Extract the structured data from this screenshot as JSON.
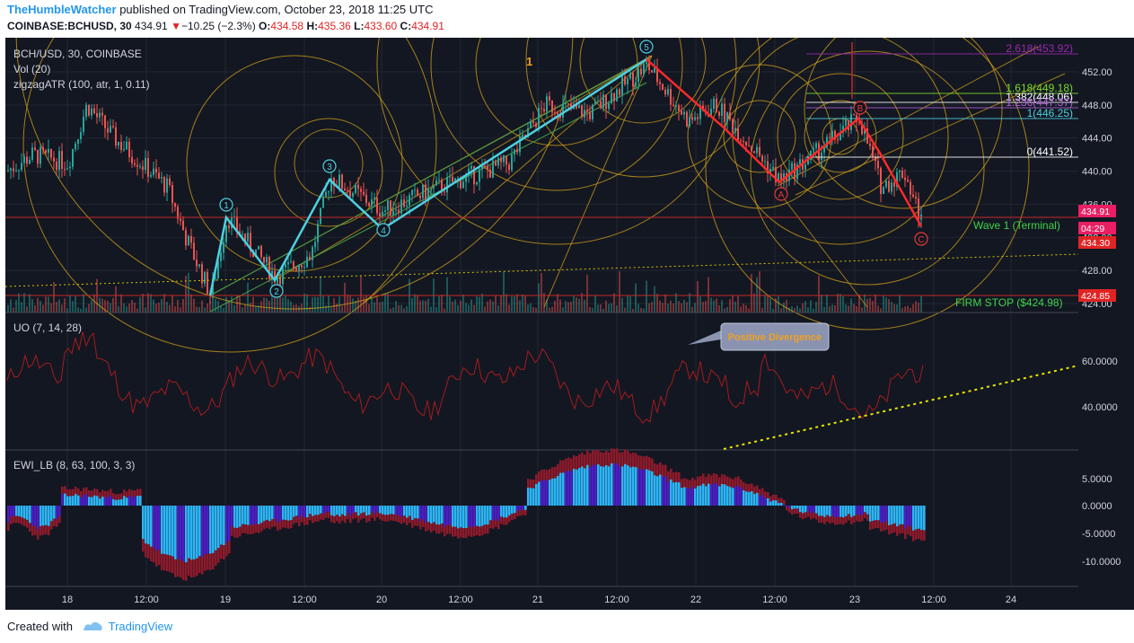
{
  "header": {
    "author": "TheHumbleWatcher",
    "published": " published on TradingView.com, October 23, 2018 11:25 UTC"
  },
  "ticker": {
    "symbol": "COINBASE:BCHUSD, 30",
    "price": "434.91",
    "change": "−10.25 (−2.3%)",
    "o_label": "O:",
    "o_value": "434.58",
    "h_label": "H:",
    "h_value": "435.36",
    "l_label": "L:",
    "l_value": "433.60",
    "c_label": "C:",
    "c_value": "434.91"
  },
  "colors": {
    "background": "#131722",
    "up_candle": "#26a69a",
    "down_candle": "#ef5350",
    "wave_line": "#4dd0e1",
    "correction_line": "#ff2a2a",
    "fib_circle": "#d6a418",
    "ewi_pos": "#29b6f6",
    "ewi_neg": "#4a1ec7",
    "ewi_outline": "#8b1a2b"
  },
  "main_pane": {
    "legend": [
      "BCH/USD, 30, COINBASE",
      "Vol (20)",
      "zigzagATR (100, atr, 1, 0.11)"
    ],
    "price_labels": [
      "452.00",
      "448.00",
      "444.00",
      "440.00",
      "436.00",
      "432.00",
      "428.00",
      "424.00"
    ],
    "fib_levels": [
      {
        "label": "2.618(453.92)",
        "color": "#9c27b0",
        "price": 453.92
      },
      {
        "label": "1.618(449.18)",
        "color": "#7cdc2a",
        "price": 449.18
      },
      {
        "label": "1.382(448.06)",
        "color": "#ffffff",
        "price": 448.06
      },
      {
        "label": "1.236(447.37)",
        "color": "#b060d8",
        "price": 447.37
      },
      {
        "label": "1(446.25)",
        "color": "#4dd0e1",
        "price": 446.25
      },
      {
        "label": "0(441.52)",
        "color": "#ffffff",
        "price": 441.52
      }
    ],
    "price_tags": [
      {
        "label": "434.91",
        "bg": "#e91e63"
      },
      {
        "label": "04:29",
        "bg": "#e91e63"
      },
      {
        "label": "434.30",
        "bg": "#e02424"
      },
      {
        "label": "424.85",
        "bg": "#e02424"
      }
    ],
    "wave_labels": [
      "1",
      "2",
      "3",
      "4",
      "5"
    ],
    "correction_labels": [
      "A",
      "B",
      "C"
    ],
    "orange_label": "1",
    "annotations": {
      "wave_terminal": "Wave 1 (Terminal)",
      "firm_stop": "FIRM STOP ($424.98)"
    }
  },
  "uo_pane": {
    "legend": "UO (7, 14, 28)",
    "axis_labels": [
      "60.0000",
      "40.0000"
    ],
    "callout": "Positive Divergence"
  },
  "ewi_pane": {
    "legend": "EWI_LB (8, 63, 100, 3, 3)",
    "axis_labels": [
      "5.0000",
      "0.0000",
      "-5.0000",
      "-10.0000"
    ]
  },
  "time_axis": [
    "18",
    "12:00",
    "19",
    "12:00",
    "20",
    "12:00",
    "21",
    "12:00",
    "22",
    "12:00",
    "23",
    "12:00",
    "24"
  ],
  "chart_data": {
    "type": "line",
    "title": "BCH/USD, 30, COINBASE",
    "xlabel": "",
    "ylabel": "",
    "x": [
      "18",
      "19",
      "20",
      "21",
      "22",
      "23"
    ],
    "series": [
      {
        "name": "zigzagATR wave points (1,2,3,4,5,A,B,C)",
        "values": [
          {
            "wave": "1",
            "price": 434.5
          },
          {
            "wave": "2",
            "price": 427.2
          },
          {
            "wave": "3",
            "price": 439.3
          },
          {
            "wave": "4",
            "price": 435.2
          },
          {
            "wave": "5",
            "price": 452.8
          },
          {
            "wave": "A",
            "price": 438.8
          },
          {
            "wave": "B",
            "price": 446.5
          },
          {
            "wave": "C",
            "price": 433.8
          }
        ]
      }
    ],
    "ylim": [
      424,
      455
    ],
    "fib_extensions": [
      453.92,
      449.18,
      448.06,
      447.37,
      446.25,
      441.52
    ],
    "firm_stop": 424.98,
    "last_price": 434.91,
    "uo_ylim": [
      20,
      80
    ],
    "ewi_ylim": [
      -12,
      9
    ]
  }
}
